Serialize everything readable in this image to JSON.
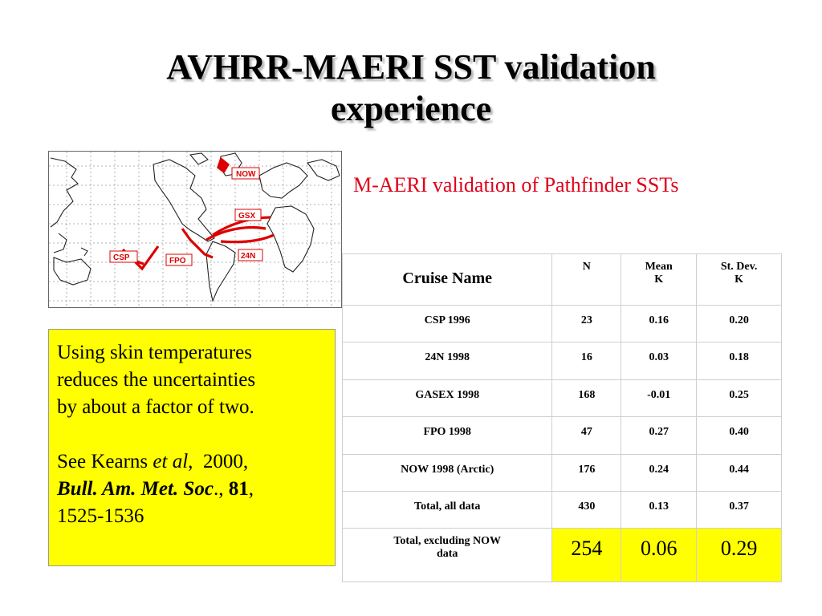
{
  "slide": {
    "title_line1": "AVHRR-MAERI SST validation",
    "title_line2": "experience"
  },
  "map": {
    "labels": {
      "now": "NOW",
      "gsx": "GSX",
      "csp": "CSP",
      "fpo": "FPO",
      "n24": "24N"
    },
    "track_color": "#dd0000"
  },
  "subtitle": "M-AERI validation of Pathfinder SSTs",
  "table": {
    "headers": {
      "name": "Cruise Name",
      "n": "N",
      "mean_1": "Mean",
      "mean_2": "K",
      "sd_1": "St. Dev.",
      "sd_2": "K"
    },
    "rows": [
      {
        "name": "CSP 1996",
        "n": "23",
        "mean": "0.16",
        "sd": "0.20"
      },
      {
        "name": "24N 1998",
        "n": "16",
        "mean": "0.03",
        "sd": "0.18"
      },
      {
        "name": "GASEX 1998",
        "n": "168",
        "mean": "-0.01",
        "sd": "0.25"
      },
      {
        "name": "FPO 1998",
        "n": "47",
        "mean": "0.27",
        "sd": "0.40"
      },
      {
        "name": "NOW 1998 (Arctic)",
        "n": "176",
        "mean": "0.24",
        "sd": "0.44"
      },
      {
        "name": "Total, all data",
        "n": "430",
        "mean": "0.13",
        "sd": "0.37"
      }
    ],
    "last_row": {
      "name_1": "Total, excluding NOW",
      "name_2": "data",
      "n": "254",
      "mean": "0.06",
      "sd": "0.29"
    },
    "highlight_color": "#ffff00"
  },
  "note": {
    "line1": "Using skin temperatures",
    "line2": "reduces the uncertainties",
    "line3": "by about a factor of two.",
    "ref_prefix": "See Kearns ",
    "ref_etal": "et al",
    "ref_year": ",  2000,",
    "ref_journal": "Bull. Am. Met. Soc",
    "ref_dot": ".,",
    "ref_volume": "81",
    "ref_comma": ",",
    "ref_pages": "1525-1536",
    "background": "#ffff00"
  }
}
